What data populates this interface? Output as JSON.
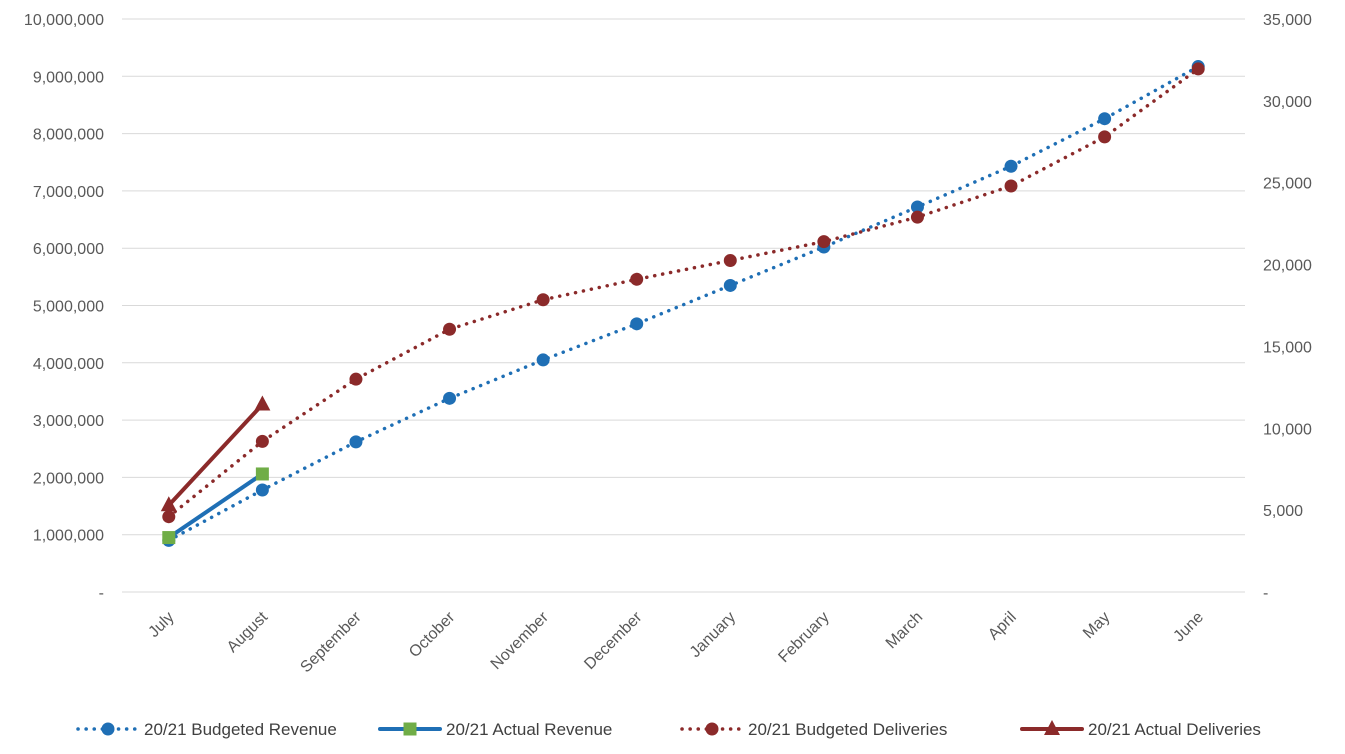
{
  "chart_data": {
    "type": "line",
    "categories": [
      "July",
      "August",
      "September",
      "October",
      "November",
      "December",
      "January",
      "February",
      "March",
      "April",
      "May",
      "June"
    ],
    "y_left": {
      "ylim": [
        0,
        10000000
      ],
      "ticks": [
        "-",
        "1,000,000",
        "2,000,000",
        "3,000,000",
        "4,000,000",
        "5,000,000",
        "6,000,000",
        "7,000,000",
        "8,000,000",
        "9,000,000",
        "10,000,000"
      ]
    },
    "y_right": {
      "ylim": [
        0,
        35000
      ],
      "ticks": [
        "-",
        "5,000",
        "10,000",
        "15,000",
        "20,000",
        "25,000",
        "30,000",
        "35,000"
      ]
    },
    "grid": true,
    "legend_position": "bottom",
    "series": [
      {
        "name": "20/21 Budgeted Revenue",
        "axis": "left",
        "style": "dotted",
        "marker": "circle",
        "color": "#1f6fb5",
        "values": [
          900000,
          1780000,
          2620000,
          3380000,
          4050000,
          4680000,
          5350000,
          6020000,
          6720000,
          7430000,
          8260000,
          9170000
        ]
      },
      {
        "name": "20/21 Actual Revenue",
        "axis": "left",
        "style": "solid",
        "marker": "square",
        "color": "#1f6fb5",
        "marker_color": "#70ad47",
        "values": [
          950000,
          2060000,
          null,
          null,
          null,
          null,
          null,
          null,
          null,
          null,
          null,
          null
        ]
      },
      {
        "name": "20/21 Budgeted Deliveries",
        "axis": "right",
        "style": "dotted",
        "marker": "circle",
        "color": "#8b2a2a",
        "values": [
          4600,
          9200,
          13000,
          16050,
          17850,
          19100,
          20250,
          21400,
          22900,
          24800,
          27800,
          31950
        ]
      },
      {
        "name": "20/21 Actual Deliveries",
        "axis": "right",
        "style": "solid",
        "marker": "triangle",
        "color": "#8b2a2a",
        "values": [
          5300,
          11450,
          null,
          null,
          null,
          null,
          null,
          null,
          null,
          null,
          null,
          null
        ]
      }
    ]
  }
}
